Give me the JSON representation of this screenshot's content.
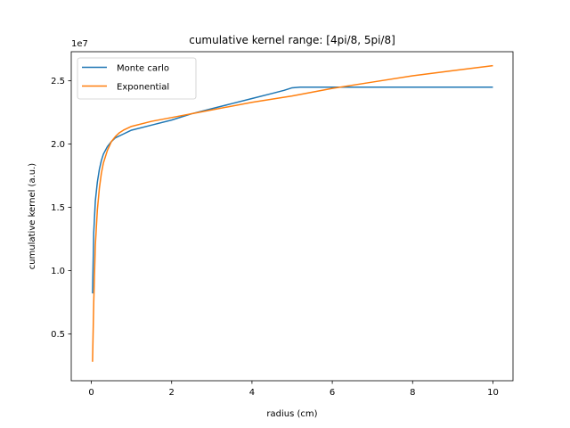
{
  "chart_data": {
    "type": "line",
    "title": "cumulative kernel range: [4pi/8, 5pi/8]",
    "xlabel": "radius (cm)",
    "ylabel": "cumulative kernel (a.u.)",
    "y_multiplier_label": "1e7",
    "xlim": [
      -0.5,
      10.5
    ],
    "ylim": [
      1.3,
      27.3
    ],
    "x_ticks": [
      0,
      2,
      4,
      6,
      8,
      10
    ],
    "x_tick_labels": [
      "0",
      "2",
      "4",
      "6",
      "8",
      "10"
    ],
    "y_ticks": [
      5,
      10,
      15,
      20,
      25
    ],
    "y_tick_labels": [
      "0.5",
      "1.0",
      "1.5",
      "2.0",
      "2.5"
    ],
    "grid": false,
    "legend_position": "top-left",
    "series": [
      {
        "name": "Monte carlo",
        "color": "#1f77b4",
        "x": [
          0.03,
          0.06,
          0.1,
          0.15,
          0.2,
          0.25,
          0.3,
          0.4,
          0.5,
          0.6,
          0.8,
          1.0,
          1.5,
          2.0,
          2.5,
          3.0,
          3.5,
          4.0,
          4.5,
          4.8,
          5.0,
          5.2,
          5.5,
          6.0,
          7.0,
          8.0,
          9.0,
          10.0
        ],
        "y": [
          8.2,
          13.0,
          15.5,
          17.0,
          18.0,
          18.7,
          19.2,
          19.8,
          20.2,
          20.5,
          20.8,
          21.1,
          21.5,
          21.9,
          22.4,
          22.8,
          23.2,
          23.6,
          24.0,
          24.25,
          24.45,
          24.5,
          24.5,
          24.5,
          24.5,
          24.5,
          24.5,
          24.5
        ]
      },
      {
        "name": "Exponential",
        "color": "#ff7f0e",
        "x": [
          0.03,
          0.06,
          0.1,
          0.15,
          0.2,
          0.25,
          0.3,
          0.4,
          0.5,
          0.6,
          0.7,
          0.8,
          1.0,
          1.5,
          2.0,
          3.0,
          4.0,
          5.0,
          6.0,
          7.0,
          8.0,
          9.0,
          10.0
        ],
        "y": [
          2.8,
          7.5,
          12.0,
          14.8,
          16.5,
          17.7,
          18.5,
          19.5,
          20.2,
          20.6,
          20.9,
          21.1,
          21.4,
          21.8,
          22.1,
          22.7,
          23.3,
          23.8,
          24.4,
          24.9,
          25.4,
          25.8,
          26.2
        ]
      }
    ]
  }
}
